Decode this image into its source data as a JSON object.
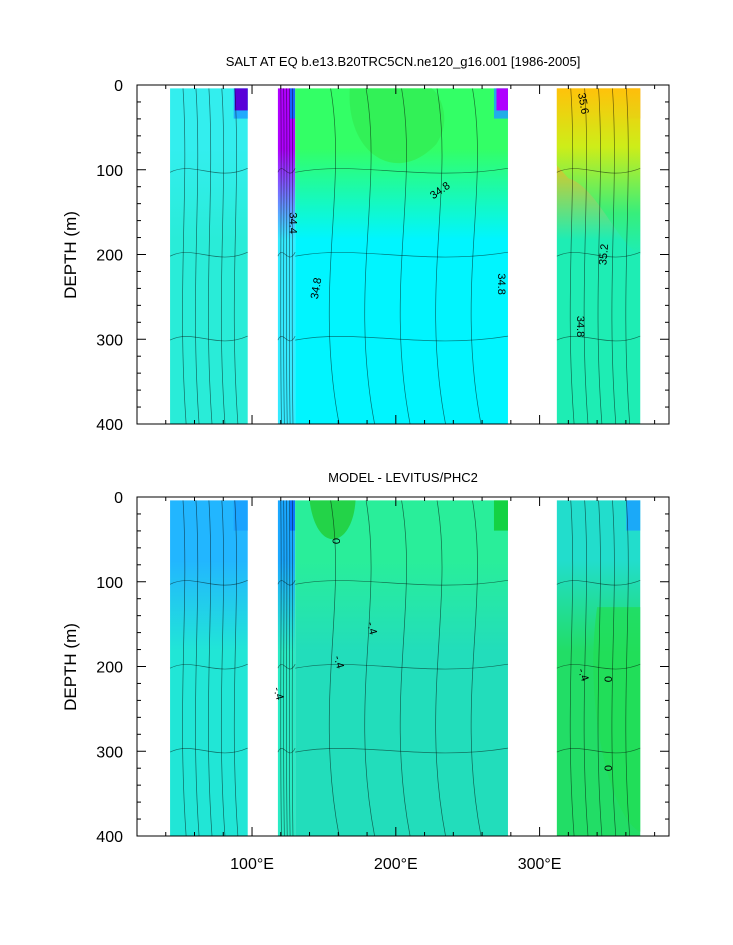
{
  "chart_data": [
    {
      "type": "heatmap",
      "title": "SALT AT EQ b.e13.B20TRC5CN.ne120_g16.001 [1986-2005]",
      "ylabel": "DEPTH (m)",
      "xlabel": "",
      "xlim": [
        20,
        390
      ],
      "ylim": [
        400,
        0
      ],
      "y_reversed": true,
      "yticks": [
        0,
        100,
        200,
        300,
        400
      ],
      "contour_labels": [
        {
          "text": "34.4",
          "x": 128,
          "y": 163,
          "angle": 90
        },
        {
          "text": "34.8",
          "x": 145,
          "y": 240,
          "angle": -80
        },
        {
          "text": "34.8",
          "x": 231,
          "y": 125,
          "angle": -35
        },
        {
          "text": "34.8",
          "x": 273,
          "y": 235,
          "angle": 90
        },
        {
          "text": "35.6",
          "x": 330,
          "y": 22,
          "angle": 80
        },
        {
          "text": "35.2",
          "x": 345,
          "y": 200,
          "angle": -85
        },
        {
          "text": "34.8",
          "x": 328,
          "y": 285,
          "angle": 90
        }
      ],
      "bands": [
        {
          "x": [
            43,
            97
          ],
          "top": "#33EEEE",
          "bottom": "#29ECD8",
          "accent": "#1f9fff"
        },
        {
          "x": [
            118,
            130
          ],
          "top": "#b000ff",
          "bottom": "#35eaff",
          "accent": "#0070ff"
        },
        {
          "x": [
            130,
            278
          ],
          "top": "#33FF66",
          "bottom": "#00F5FF",
          "accent": "#1f9fff"
        },
        {
          "x": [
            312,
            370
          ],
          "top": "#FFC20A",
          "bottom": "#1EEDB4",
          "accent": "#FF8C1A"
        }
      ]
    },
    {
      "type": "heatmap",
      "title": "MODEL - LEVITUS/PHC2",
      "ylabel": "DEPTH (m)",
      "xlabel": "",
      "xlim": [
        20,
        390
      ],
      "ylim": [
        400,
        0
      ],
      "y_reversed": true,
      "yticks": [
        0,
        100,
        200,
        300,
        400
      ],
      "xticks": [
        {
          "value": 100,
          "label": "100°E"
        },
        {
          "value": 200,
          "label": "200°E"
        },
        {
          "value": 300,
          "label": "300°E"
        }
      ],
      "contour_labels": [
        {
          "text": "0",
          "x": 158,
          "y": 52,
          "angle": 90
        },
        {
          "text": "-.4",
          "x": 183,
          "y": 155,
          "angle": 75
        },
        {
          "text": "-.4",
          "x": 160,
          "y": 195,
          "angle": 75
        },
        {
          "text": "-.4",
          "x": 118,
          "y": 232,
          "angle": 75
        },
        {
          "text": "-.4",
          "x": 330,
          "y": 210,
          "angle": 70
        },
        {
          "text": "0",
          "x": 347,
          "y": 215,
          "angle": 90
        },
        {
          "text": "0",
          "x": 347,
          "y": 320,
          "angle": 90
        }
      ],
      "bands": [
        {
          "x": [
            43,
            97
          ],
          "top": "#22B6FF",
          "bottom": "#21E6D6",
          "accent": "#1aa0ff"
        },
        {
          "x": [
            118,
            130
          ],
          "top": "#1aa8ff",
          "bottom": "#29EBC4",
          "accent": "#0a6cff"
        },
        {
          "x": [
            130,
            278
          ],
          "top": "#29EE9A",
          "bottom": "#22DDBB",
          "accent": "#11CC33"
        },
        {
          "x": [
            312,
            370
          ],
          "top": "#22DDCC",
          "bottom": "#22DD66",
          "accent": "#1aa0ff"
        }
      ]
    }
  ]
}
